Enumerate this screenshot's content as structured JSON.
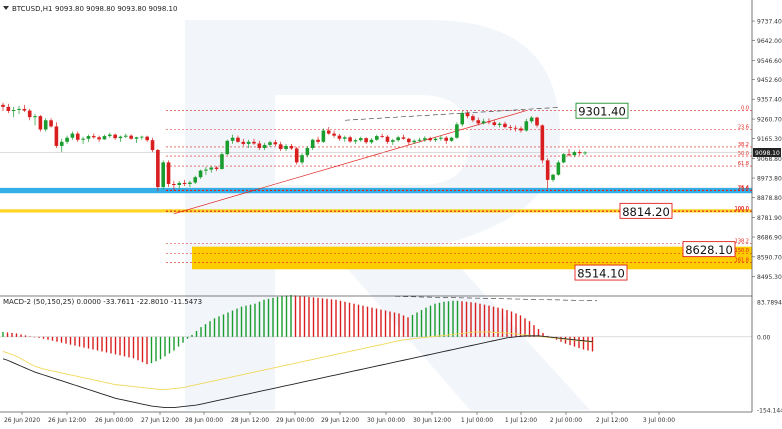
{
  "main_header": {
    "symbol": "BTCUSD,H1",
    "ohlc": "9093.80 9098.80 9093.80 9098.10"
  },
  "macd_header": {
    "text": "MACD-2 (50,150,25) 0.0000 -33.7611 -22.8010 -11.5473"
  },
  "callouts": [
    {
      "text": "9301.40",
      "color": "#1a8f2e"
    },
    {
      "text": "8814.20",
      "color": "#e0201b"
    },
    {
      "text": "8628.10",
      "color": "#e0201b"
    },
    {
      "text": "8514.10",
      "color": "#e0201b"
    }
  ],
  "current_price": "9098.10",
  "colors": {
    "bull": "#1a9c2e",
    "bear": "#d81e1e",
    "fib": "#e0201b",
    "support_band": "#33aee6",
    "fib_zone": "#ffcc00",
    "signal_line": "#f2d95c",
    "hist_line": "#222222"
  },
  "chart_data": [
    {
      "type": "candlestick",
      "symbol": "BTCUSD",
      "timeframe": "H1",
      "ylim": [
        8400,
        9840
      ],
      "y_ticks": [
        "9737.40",
        "9642.00",
        "9546.60",
        "9452.60",
        "9357.40",
        "9260.70",
        "9165.30",
        "9068.80",
        "8973.80",
        "8878.80",
        "8781.90",
        "8686.90",
        "8590.70",
        "8495.30"
      ],
      "x_ticks": [
        "26 Jun 2020",
        "26 Jun 12:00",
        "26 Jun 00:00",
        "27 Jun 12:00",
        "28 Jun 00:00",
        "28 Jun 12:00",
        "29 Jun 00:00",
        "29 Jun 12:00",
        "30 Jun 00:00",
        "30 Jun 12:00",
        "1 Jul 00:00",
        "1 Jul 12:00",
        "2 Jul 00:00",
        "2 Jul 12:00",
        "3 Jul 00:00"
      ],
      "fibonacci_labels": [
        "0.0",
        "23.6",
        "38.2",
        "50.0",
        "61.8",
        "76.4",
        "100.0",
        "23.6",
        "100.0",
        "138.2",
        "150.0",
        "161.8"
      ],
      "fibonacci_levels": [
        9302,
        9210,
        9125,
        9081,
        9032,
        8915,
        8811,
        8912,
        8814,
        8656,
        8608,
        8562
      ],
      "trend_line": {
        "from": 8800,
        "to": 9302
      },
      "divergence_line": {
        "from": 9255,
        "to": 9318
      },
      "support_band": [
        8900,
        8926
      ],
      "target_zone": [
        8530,
        8640
      ],
      "candles": [
        [
          9330,
          9340,
          9300,
          9320
        ],
        [
          9320,
          9335,
          9290,
          9300
        ],
        [
          9300,
          9320,
          9270,
          9305
        ],
        [
          9305,
          9325,
          9285,
          9310
        ],
        [
          9310,
          9330,
          9295,
          9302
        ],
        [
          9302,
          9310,
          9255,
          9270
        ],
        [
          9270,
          9285,
          9230,
          9275
        ],
        [
          9275,
          9280,
          9200,
          9210
        ],
        [
          9210,
          9265,
          9200,
          9255
        ],
        [
          9255,
          9265,
          9220,
          9225
        ],
        [
          9225,
          9245,
          9120,
          9130
        ],
        [
          9130,
          9165,
          9100,
          9150
        ],
        [
          9150,
          9180,
          9140,
          9170
        ],
        [
          9170,
          9200,
          9160,
          9190
        ],
        [
          9190,
          9200,
          9150,
          9160
        ],
        [
          9160,
          9175,
          9140,
          9165
        ],
        [
          9165,
          9185,
          9150,
          9178
        ],
        [
          9178,
          9190,
          9165,
          9172
        ],
        [
          9172,
          9180,
          9150,
          9162
        ],
        [
          9162,
          9185,
          9160,
          9178
        ],
        [
          9178,
          9195,
          9170,
          9185
        ],
        [
          9185,
          9190,
          9160,
          9168
        ],
        [
          9168,
          9180,
          9150,
          9175
        ],
        [
          9175,
          9190,
          9168,
          9180
        ],
        [
          9180,
          9186,
          9160,
          9165
        ],
        [
          9165,
          9175,
          9145,
          9172
        ],
        [
          9172,
          9180,
          9160,
          9175
        ],
        [
          9175,
          9180,
          9150,
          9158
        ],
        [
          9158,
          9170,
          9100,
          9110
        ],
        [
          9110,
          9115,
          8910,
          8930
        ],
        [
          8930,
          9060,
          8920,
          9050
        ],
        [
          9050,
          9060,
          8930,
          8945
        ],
        [
          8945,
          8960,
          8915,
          8940
        ],
        [
          8940,
          8960,
          8920,
          8950
        ],
        [
          8950,
          8965,
          8935,
          8945
        ],
        [
          8945,
          8960,
          8930,
          8952
        ],
        [
          8952,
          8985,
          8945,
          8978
        ],
        [
          8978,
          9015,
          8970,
          9010
        ],
        [
          9010,
          9028,
          8990,
          9015
        ],
        [
          9015,
          9030,
          9000,
          9025
        ],
        [
          9025,
          9032,
          9008,
          9018
        ],
        [
          9018,
          9100,
          9015,
          9090
        ],
        [
          9090,
          9160,
          9085,
          9155
        ],
        [
          9155,
          9185,
          9140,
          9170
        ],
        [
          9170,
          9180,
          9145,
          9150
        ],
        [
          9150,
          9165,
          9130,
          9140
        ],
        [
          9140,
          9160,
          9120,
          9150
        ],
        [
          9150,
          9165,
          9135,
          9142
        ],
        [
          9142,
          9155,
          9110,
          9120
        ],
        [
          9120,
          9145,
          9110,
          9135
        ],
        [
          9135,
          9155,
          9125,
          9148
        ],
        [
          9148,
          9160,
          9130,
          9138
        ],
        [
          9138,
          9150,
          9105,
          9115
        ],
        [
          9115,
          9140,
          9105,
          9130
        ],
        [
          9130,
          9140,
          9110,
          9118
        ],
        [
          9118,
          9125,
          9040,
          9050
        ],
        [
          9050,
          9095,
          9040,
          9085
        ],
        [
          9085,
          9130,
          9075,
          9120
        ],
        [
          9120,
          9165,
          9110,
          9160
        ],
        [
          9160,
          9175,
          9140,
          9150
        ],
        [
          9150,
          9215,
          9145,
          9205
        ],
        [
          9205,
          9222,
          9185,
          9190
        ],
        [
          9190,
          9205,
          9170,
          9180
        ],
        [
          9180,
          9188,
          9155,
          9165
        ],
        [
          9165,
          9180,
          9150,
          9172
        ],
        [
          9172,
          9180,
          9145,
          9152
        ],
        [
          9152,
          9165,
          9140,
          9158
        ],
        [
          9158,
          9175,
          9150,
          9168
        ],
        [
          9168,
          9172,
          9140,
          9148
        ],
        [
          9148,
          9168,
          9140,
          9160
        ],
        [
          9160,
          9185,
          9155,
          9178
        ],
        [
          9178,
          9190,
          9168,
          9175
        ],
        [
          9175,
          9182,
          9140,
          9150
        ],
        [
          9150,
          9165,
          9135,
          9158
        ],
        [
          9158,
          9180,
          9150,
          9172
        ],
        [
          9172,
          9185,
          9160,
          9165
        ],
        [
          9165,
          9170,
          9135,
          9148
        ],
        [
          9148,
          9162,
          9140,
          9155
        ],
        [
          9155,
          9170,
          9148,
          9160
        ],
        [
          9160,
          9178,
          9150,
          9168
        ],
        [
          9168,
          9175,
          9150,
          9158
        ],
        [
          9158,
          9172,
          9150,
          9165
        ],
        [
          9165,
          9180,
          9155,
          9170
        ],
        [
          9170,
          9178,
          9140,
          9155
        ],
        [
          9155,
          9175,
          9150,
          9170
        ],
        [
          9170,
          9245,
          9165,
          9235
        ],
        [
          9235,
          9300,
          9225,
          9290
        ],
        [
          9290,
          9302,
          9265,
          9275
        ],
        [
          9275,
          9285,
          9245,
          9255
        ],
        [
          9255,
          9268,
          9230,
          9240
        ],
        [
          9240,
          9262,
          9235,
          9250
        ],
        [
          9250,
          9265,
          9235,
          9245
        ],
        [
          9245,
          9258,
          9225,
          9232
        ],
        [
          9232,
          9245,
          9220,
          9238
        ],
        [
          9238,
          9248,
          9215,
          9222
        ],
        [
          9222,
          9232,
          9205,
          9218
        ],
        [
          9218,
          9230,
          9200,
          9215
        ],
        [
          9215,
          9225,
          9195,
          9205
        ],
        [
          9205,
          9262,
          9200,
          9250
        ],
        [
          9250,
          9275,
          9240,
          9268
        ],
        [
          9268,
          9272,
          9220,
          9230
        ],
        [
          9230,
          9235,
          9045,
          9060
        ],
        [
          9060,
          9070,
          8920,
          8965
        ],
        [
          8965,
          8995,
          8955,
          8990
        ],
        [
          8990,
          9060,
          8985,
          9050
        ],
        [
          9050,
          9095,
          9045,
          9090
        ],
        [
          9090,
          9115,
          9080,
          9085
        ],
        [
          9085,
          9108,
          9075,
          9100
        ],
        [
          9100,
          9112,
          9085,
          9095
        ],
        [
          9095,
          9105,
          9085,
          9098
        ]
      ]
    },
    {
      "type": "histogram",
      "title": "MACD-2 (50,150,25)",
      "ylim": [
        -154.1442,
        83.7894
      ],
      "y_ticks": [
        "83.7894",
        "0.00",
        "-154.1442"
      ],
      "histogram": [
        10,
        9,
        8,
        7,
        5,
        3,
        1,
        -1,
        -2,
        -4,
        -6,
        -8,
        -10,
        -12,
        -14,
        -16,
        -18,
        -20,
        -22,
        -24,
        -26,
        -28,
        -30,
        -32,
        -34,
        -36,
        -38,
        -40,
        -42,
        -44,
        -48,
        -52,
        -56,
        -54,
        -50,
        -46,
        -40,
        -34,
        -28,
        -20,
        -12,
        -4,
        4,
        12,
        20,
        26,
        32,
        38,
        42,
        46,
        50,
        54,
        58,
        62,
        64,
        66,
        68,
        72,
        76,
        78,
        80,
        82,
        84,
        85,
        86,
        85,
        84,
        83,
        82,
        81,
        80,
        79,
        78,
        77,
        76,
        74,
        72,
        70,
        68,
        66,
        64,
        62,
        60,
        58,
        56,
        54,
        52,
        50,
        48,
        44,
        40,
        45,
        50,
        55,
        60,
        64,
        68,
        70,
        72,
        73,
        74,
        74,
        73,
        72,
        71,
        70,
        68,
        66,
        64,
        62,
        60,
        58,
        55,
        52,
        48,
        44,
        38,
        32,
        24,
        16,
        8,
        2,
        -2,
        -6,
        -10,
        -14,
        -17,
        -20,
        -23,
        -26,
        -28,
        -30
      ],
      "signal": [
        -30,
        -33,
        -36,
        -40,
        -45,
        -50,
        -55,
        -60,
        -63,
        -66,
        -68,
        -70,
        -72,
        -74,
        -76,
        -78,
        -80,
        -82,
        -84,
        -86,
        -88,
        -90,
        -92,
        -94,
        -96,
        -98,
        -99,
        -100,
        -101,
        -102,
        -103,
        -104,
        -105,
        -106,
        -107,
        -108,
        -108,
        -107,
        -106,
        -105,
        -104,
        -102,
        -100,
        -98,
        -96,
        -94,
        -92,
        -90,
        -88,
        -86,
        -84,
        -82,
        -80,
        -78,
        -76,
        -74,
        -72,
        -70,
        -68,
        -66,
        -64,
        -62,
        -60,
        -58,
        -56,
        -54,
        -52,
        -50,
        -48,
        -46,
        -44,
        -42,
        -40,
        -38,
        -36,
        -34,
        -32,
        -30,
        -28,
        -26,
        -24,
        -22,
        -20,
        -18,
        -16,
        -14,
        -12,
        -10,
        -8,
        -6,
        -5,
        -4,
        -3,
        -2,
        -1,
        0,
        1,
        2,
        3,
        4,
        5,
        6,
        7,
        8,
        9,
        10,
        10,
        10,
        10,
        9,
        9,
        8,
        8,
        7,
        6,
        5,
        4,
        3,
        2,
        1,
        0,
        -1,
        -2,
        -3,
        -4,
        -5,
        -6,
        -7,
        -8,
        -9,
        -10,
        -11
      ],
      "line": [
        -45,
        -48,
        -52,
        -56,
        -60,
        -64,
        -68,
        -72,
        -75,
        -78,
        -81,
        -84,
        -87,
        -90,
        -93,
        -96,
        -99,
        -102,
        -105,
        -108,
        -111,
        -114,
        -117,
        -120,
        -123,
        -126,
        -128,
        -130,
        -132,
        -134,
        -136,
        -138,
        -140,
        -142,
        -143,
        -144,
        -145,
        -145,
        -145,
        -144,
        -143,
        -142,
        -141,
        -140,
        -138,
        -136,
        -134,
        -132,
        -130,
        -128,
        -126,
        -124,
        -122,
        -120,
        -118,
        -116,
        -114,
        -112,
        -110,
        -108,
        -106,
        -104,
        -102,
        -100,
        -98,
        -96,
        -94,
        -92,
        -90,
        -88,
        -86,
        -84,
        -82,
        -80,
        -78,
        -76,
        -74,
        -72,
        -70,
        -68,
        -66,
        -64,
        -62,
        -60,
        -58,
        -56,
        -54,
        -52,
        -50,
        -48,
        -46,
        -44,
        -42,
        -40,
        -38,
        -36,
        -34,
        -32,
        -30,
        -28,
        -26,
        -24,
        -22,
        -20,
        -18,
        -16,
        -14,
        -12,
        -10,
        -8,
        -6,
        -4,
        -2,
        -1,
        0,
        1,
        2,
        2,
        2,
        2,
        1,
        0,
        -1,
        -2,
        -3,
        -4,
        -5,
        -6,
        -7,
        -8,
        -9,
        -10
      ]
    }
  ]
}
